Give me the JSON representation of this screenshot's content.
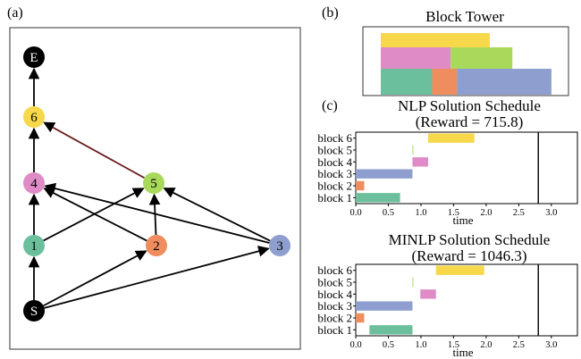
{
  "panels": {
    "a": "(a)",
    "b": "(b)",
    "c": "(c)"
  },
  "graph": {
    "nodes": [
      {
        "id": "E",
        "label": "E",
        "color": "#000000",
        "text_color": "#ffffff"
      },
      {
        "id": "6",
        "label": "6",
        "color": "#f7d84a",
        "text_color": "#000000"
      },
      {
        "id": "4",
        "label": "4",
        "color": "#de8bc6",
        "text_color": "#000000"
      },
      {
        "id": "5",
        "label": "5",
        "color": "#a9d95a",
        "text_color": "#000000"
      },
      {
        "id": "1",
        "label": "1",
        "color": "#6bbf9c",
        "text_color": "#000000"
      },
      {
        "id": "2",
        "label": "2",
        "color": "#ef8d5e",
        "text_color": "#000000"
      },
      {
        "id": "3",
        "label": "3",
        "color": "#8e9fcf",
        "text_color": "#000000"
      },
      {
        "id": "S",
        "label": "S",
        "color": "#000000",
        "text_color": "#ffffff"
      }
    ],
    "edges": [
      [
        "S",
        "1"
      ],
      [
        "S",
        "2"
      ],
      [
        "S",
        "3"
      ],
      [
        "1",
        "4"
      ],
      [
        "1",
        "5"
      ],
      [
        "2",
        "4"
      ],
      [
        "2",
        "5"
      ],
      [
        "3",
        "4"
      ],
      [
        "3",
        "5"
      ],
      [
        "4",
        "6"
      ],
      [
        "5",
        "6"
      ],
      [
        "6",
        "E"
      ]
    ]
  },
  "tower": {
    "title": "Block Tower",
    "blocks": [
      {
        "block": 1,
        "color": "#6bbf9c",
        "level": 0,
        "start": 0.0,
        "end": 0.25
      },
      {
        "block": 2,
        "color": "#ef8d5e",
        "level": 0,
        "start": 0.25,
        "end": 0.37
      },
      {
        "block": 3,
        "color": "#8e9fcf",
        "level": 0,
        "start": 0.37,
        "end": 0.83
      },
      {
        "block": 4,
        "color": "#de8bc6",
        "level": 1,
        "start": 0.0,
        "end": 0.34
      },
      {
        "block": 5,
        "color": "#a9d95a",
        "level": 1,
        "start": 0.34,
        "end": 0.64
      },
      {
        "block": 6,
        "color": "#f7d84a",
        "level": 2,
        "start": 0.0,
        "end": 0.53
      }
    ]
  },
  "nlp_chart": {
    "title_line1": "NLP Solution Schedule",
    "title_line2": "(Reward = 715.8)",
    "xlabel": "time",
    "xticks": [
      "0.0",
      "0.5",
      "1.0",
      "1.5",
      "2.0",
      "2.5",
      "3.0"
    ],
    "categories": [
      "block 1",
      "block 2",
      "block 3",
      "block 4",
      "block 5",
      "block 6"
    ],
    "xlim": [
      0,
      3.4
    ],
    "vline": 2.8,
    "bars": [
      {
        "block": "block 1",
        "start": 0.0,
        "end": 0.68,
        "color": "#6bbf9c"
      },
      {
        "block": "block 2",
        "start": 0.0,
        "end": 0.13,
        "color": "#ef8d5e"
      },
      {
        "block": "block 3",
        "start": 0.0,
        "end": 0.87,
        "color": "#8e9fcf"
      },
      {
        "block": "block 4",
        "start": 0.87,
        "end": 1.11,
        "color": "#de8bc6"
      },
      {
        "block": "block 5",
        "start": 0.87,
        "end": 0.88,
        "color": "#a9d95a"
      },
      {
        "block": "block 6",
        "start": 1.11,
        "end": 1.82,
        "color": "#f7d84a"
      }
    ]
  },
  "minlp_chart": {
    "title_line1": "MINLP Solution Schedule",
    "title_line2": "(Reward = 1046.3)",
    "xlabel": "time",
    "xticks": [
      "0.0",
      "0.5",
      "1.0",
      "1.5",
      "2.0",
      "2.5",
      "3.0"
    ],
    "categories": [
      "block 1",
      "block 2",
      "block 3",
      "block 4",
      "block 5",
      "block 6"
    ],
    "xlim": [
      0,
      3.4
    ],
    "vline": 2.8,
    "bars": [
      {
        "block": "block 1",
        "start": 0.21,
        "end": 0.87,
        "color": "#6bbf9c"
      },
      {
        "block": "block 2",
        "start": 0.0,
        "end": 0.13,
        "color": "#ef8d5e"
      },
      {
        "block": "block 3",
        "start": 0.0,
        "end": 0.87,
        "color": "#8e9fcf"
      },
      {
        "block": "block 4",
        "start": 0.99,
        "end": 1.23,
        "color": "#de8bc6"
      },
      {
        "block": "block 5",
        "start": 0.87,
        "end": 0.88,
        "color": "#a9d95a"
      },
      {
        "block": "block 6",
        "start": 1.23,
        "end": 1.97,
        "color": "#f7d84a"
      }
    ]
  }
}
